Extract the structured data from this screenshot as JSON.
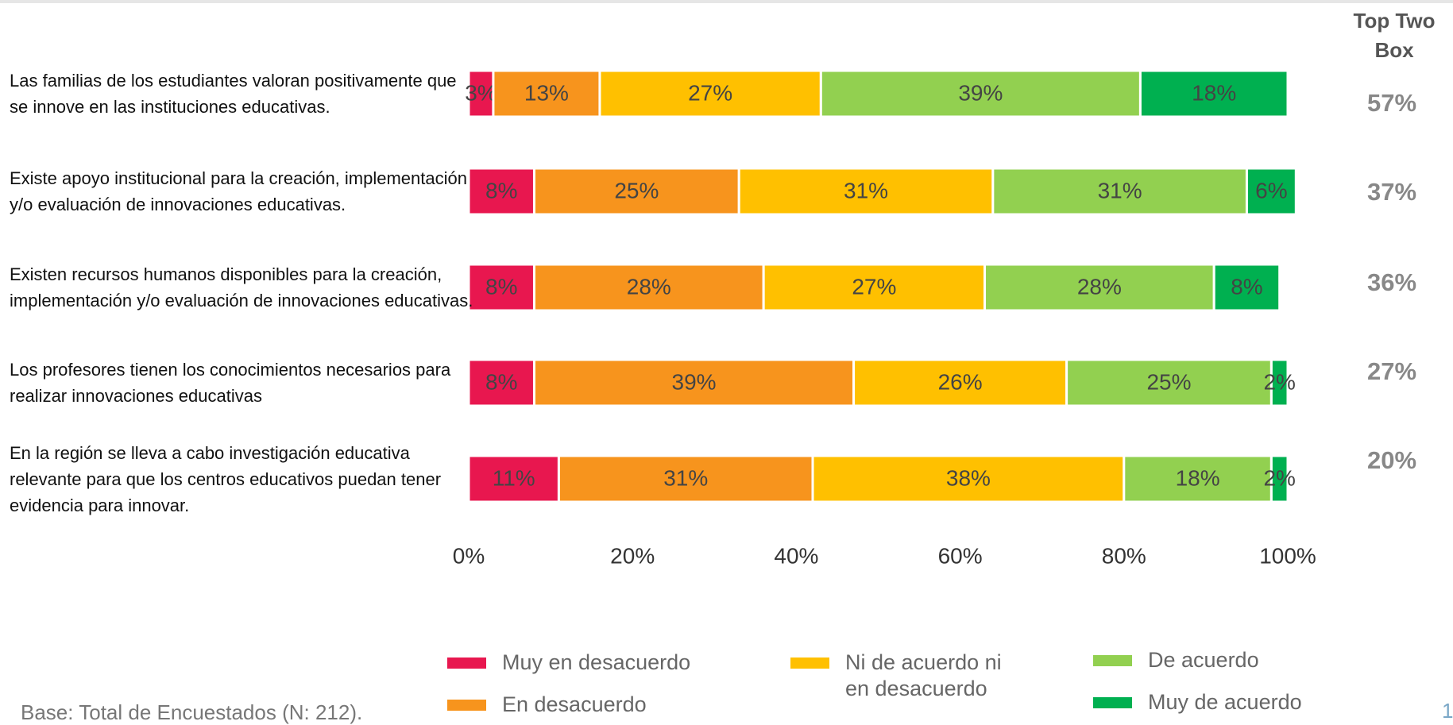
{
  "chart_data": {
    "type": "stacked_barh",
    "categories": [
      "Las familias de los estudiantes valoran positivamente que se innove en las instituciones educativas.",
      "Existe apoyo institucional para la creación, implementación y/o evaluación de innovaciones educativas.",
      "Existen recursos humanos disponibles para la creación, implementación y/o evaluación de innovaciones educativas.",
      "Los profesores tienen los conocimientos necesarios para realizar innovaciones educativas",
      "En la región se lleva a cabo investigación educativa relevante para que los centros educativos puedan tener evidencia para innovar."
    ],
    "series": [
      {
        "name": "Muy en desacuerdo",
        "color": "#e8174f",
        "values": [
          3,
          8,
          8,
          8,
          11
        ],
        "value_labels": [
          "3%",
          "8%",
          "8%",
          "8%",
          "11%"
        ]
      },
      {
        "name": "En desacuerdo",
        "color": "#f7941d",
        "values": [
          13,
          25,
          28,
          39,
          31
        ],
        "value_labels": [
          "13%",
          "25%",
          "28%",
          "39%",
          "31%"
        ]
      },
      {
        "name": "Ni de acuerdo ni en desacuerdo",
        "color": "#ffc000",
        "values": [
          27,
          31,
          27,
          26,
          38
        ],
        "value_labels": [
          "27%",
          "31%",
          "27%",
          "26%",
          "38%"
        ]
      },
      {
        "name": "De acuerdo",
        "color": "#92d050",
        "values": [
          39,
          31,
          28,
          25,
          18
        ],
        "value_labels": [
          "39%",
          "31%",
          "28%",
          "25%",
          "18%"
        ]
      },
      {
        "name": "Muy de acuerdo",
        "color": "#00b050",
        "values": [
          18,
          6,
          8,
          2,
          2
        ],
        "value_labels": [
          "18%",
          "6%",
          "8%",
          "2%",
          "2%"
        ]
      }
    ],
    "xlim": [
      0,
      100
    ],
    "xticks": [
      {
        "value": 0,
        "label": "0%"
      },
      {
        "value": 20,
        "label": "20%"
      },
      {
        "value": 40,
        "label": "40%"
      },
      {
        "value": 60,
        "label": "60%"
      },
      {
        "value": 80,
        "label": "80%"
      },
      {
        "value": 100,
        "label": "100%"
      }
    ],
    "top_two_box": {
      "title": "Top Two Box",
      "values": [
        57,
        37,
        36,
        27,
        20
      ],
      "value_labels": [
        "57%",
        "37%",
        "36%",
        "27%",
        "20%"
      ]
    },
    "footnote": "Base: Total de Encuestados (N: 212).",
    "page_number": "1"
  }
}
